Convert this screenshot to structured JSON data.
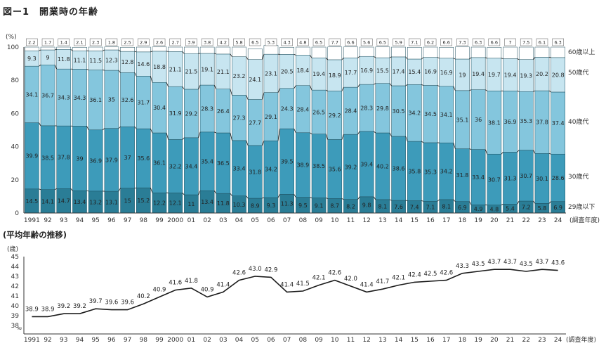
{
  "figure": {
    "title": "図ー1　開業時の年齢",
    "avg_title": "(平均年齢の推移)"
  },
  "colors": {
    "u29": "#2a7d96",
    "s30": "#3d9bba",
    "s40": "#84c6dd",
    "s50": "#c7e5f0",
    "o60": "#ffffff",
    "line": "#1a1a1a"
  },
  "chart_data": [
    {
      "type": "bar",
      "stacked": true,
      "y_unit": "(%)",
      "ylim": [
        0,
        100
      ],
      "yticks": [
        "0",
        "20",
        "40",
        "60",
        "80",
        "100"
      ],
      "categories": [
        "1991",
        "92",
        "93",
        "94",
        "95",
        "96",
        "97",
        "98",
        "99",
        "2000",
        "01",
        "02",
        "03",
        "04",
        "05",
        "06",
        "07",
        "08",
        "09",
        "10",
        "11",
        "12",
        "13",
        "14",
        "15",
        "16",
        "17",
        "18",
        "19",
        "20",
        "21",
        "22",
        "23",
        "24"
      ],
      "x_suffix": "(調査年度)",
      "series": [
        {
          "name": "29歳以下",
          "values": [
            14.5,
            14.1,
            14.7,
            13.4,
            13.2,
            13.1,
            15.0,
            15.2,
            12.2,
            12.1,
            11.0,
            13.4,
            11.8,
            10.3,
            8.9,
            9.3,
            11.3,
            9.5,
            9.1,
            8.7,
            8.2,
            9.8,
            8.1,
            7.6,
            7.4,
            7.1,
            8.1,
            6.9,
            4.9,
            4.8,
            5.4,
            7.2,
            5.8,
            6.9
          ]
        },
        {
          "name": "30歳代",
          "values": [
            39.9,
            38.5,
            37.8,
            39.0,
            36.9,
            37.9,
            37.0,
            35.6,
            36.1,
            32.2,
            34.4,
            35.4,
            36.5,
            33.4,
            31.8,
            34.2,
            39.5,
            38.9,
            38.5,
            35.6,
            39.2,
            39.4,
            40.2,
            38.6,
            35.8,
            35.3,
            34.2,
            31.8,
            33.4,
            30.7,
            31.3,
            30.7,
            30.1,
            28.6
          ]
        },
        {
          "name": "40歳代",
          "values": [
            34.1,
            36.7,
            34.3,
            34.3,
            36.1,
            35.0,
            32.6,
            31.7,
            30.4,
            31.9,
            29.2,
            28.3,
            26.4,
            27.3,
            27.7,
            29.1,
            24.3,
            28.4,
            26.5,
            29.2,
            28.4,
            28.3,
            29.8,
            30.5,
            34.2,
            34.5,
            34.1,
            35.1,
            36.0,
            38.1,
            36.9,
            35.3,
            37.8,
            37.4
          ]
        },
        {
          "name": "50歳代",
          "values": [
            9.3,
            9.0,
            11.8,
            11.1,
            11.5,
            12.3,
            12.8,
            14.6,
            18.8,
            21.1,
            21.5,
            19.1,
            21.1,
            23.2,
            24.1,
            23.1,
            20.5,
            18.4,
            19.4,
            18.9,
            17.7,
            16.9,
            15.5,
            17.4,
            15.4,
            16.9,
            16.9,
            19.0,
            19.4,
            19.7,
            19.4,
            19.3,
            20.2,
            20.8
          ]
        },
        {
          "name": "60歳以上",
          "values": [
            2.2,
            1.7,
            1.4,
            2.1,
            2.3,
            1.8,
            2.5,
            2.9,
            2.6,
            2.7,
            3.9,
            3.8,
            4.2,
            5.8,
            6.5,
            5.3,
            4.3,
            4.8,
            6.5,
            7.7,
            6.6,
            5.6,
            6.5,
            5.9,
            7.1,
            6.2,
            6.6,
            7.3,
            6.3,
            6.6,
            7.0,
            7.5,
            6.1,
            6.3
          ]
        }
      ]
    },
    {
      "type": "line",
      "y_unit": "(歳)",
      "ylim": [
        38,
        45
      ],
      "yticks": [
        "38",
        "39",
        "40",
        "41",
        "42",
        "43",
        "44",
        "45"
      ],
      "axis_break": "≈",
      "categories": [
        "1991",
        "92",
        "93",
        "94",
        "95",
        "96",
        "97",
        "98",
        "99",
        "2000",
        "01",
        "02",
        "03",
        "04",
        "05",
        "06",
        "07",
        "08",
        "09",
        "10",
        "11",
        "12",
        "13",
        "14",
        "15",
        "16",
        "17",
        "18",
        "19",
        "20",
        "21",
        "22",
        "23",
        "24"
      ],
      "x_suffix": "(調査年度)",
      "values": [
        38.9,
        38.9,
        39.2,
        39.2,
        39.7,
        39.6,
        39.6,
        40.2,
        40.9,
        41.6,
        41.8,
        40.9,
        41.4,
        42.6,
        43.0,
        42.9,
        41.4,
        41.5,
        42.1,
        42.6,
        42.0,
        41.4,
        41.7,
        42.1,
        42.4,
        42.5,
        42.6,
        43.3,
        43.5,
        43.7,
        43.7,
        43.5,
        43.7,
        43.6
      ],
      "labels": [
        "38.9",
        "38.9",
        "39.2",
        "39.2",
        "39.7",
        "39.6",
        "39.6",
        "40.2",
        "40.9",
        "41.6",
        "41.8",
        "40.9",
        "41.4",
        "42.6",
        "43.0",
        "42.9",
        "41.4",
        "41.5",
        "42.1",
        "42.6",
        "42.0",
        "41.4",
        "41.7",
        "42.1",
        "42.4",
        "42.5",
        "42.6",
        "43.3",
        "43.5",
        "43.7",
        "43.7",
        "43.5",
        "43.7",
        "43.6"
      ]
    }
  ]
}
